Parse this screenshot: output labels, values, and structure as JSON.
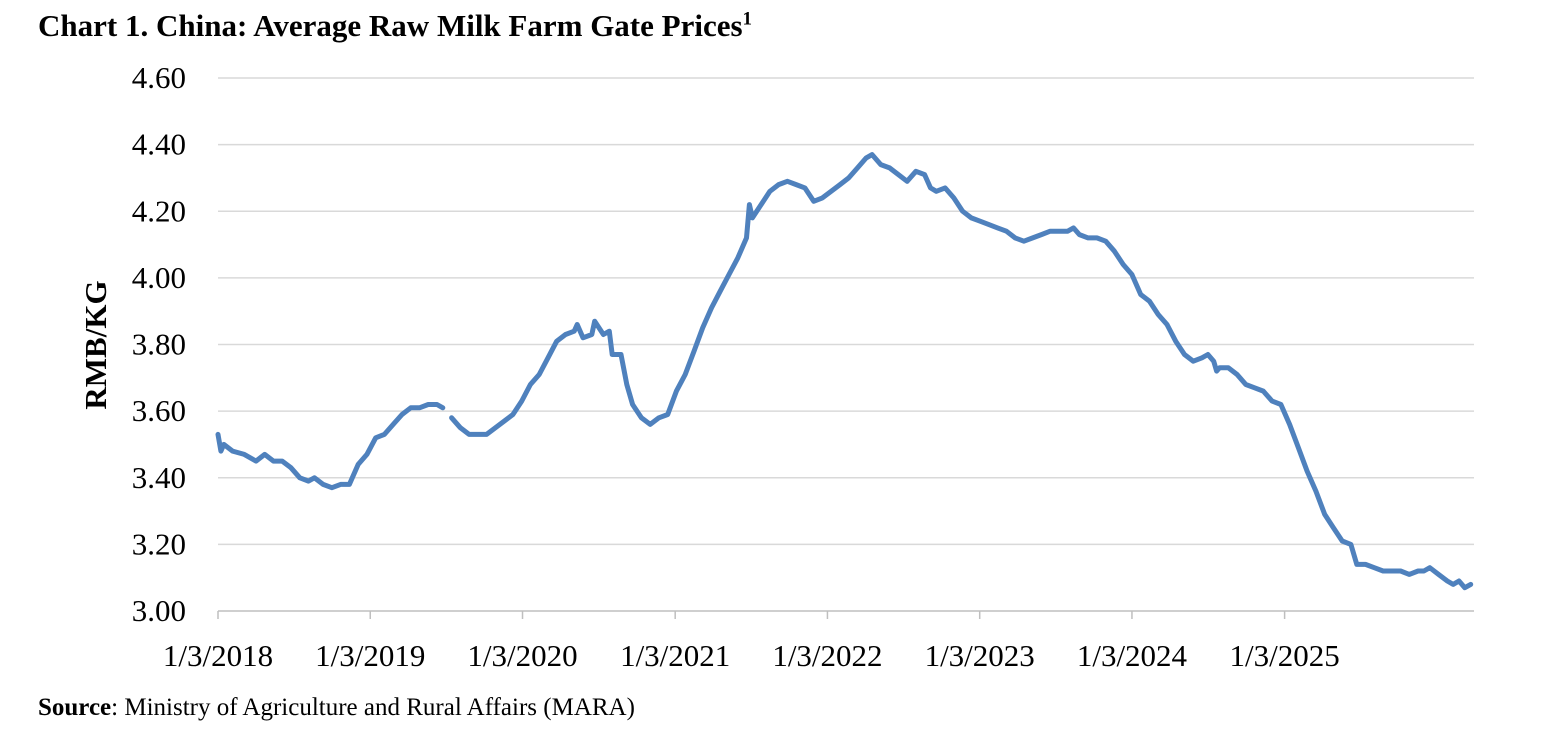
{
  "chart_data": {
    "type": "line",
    "title": "Chart 1. China:  Average Raw Milk Farm Gate Prices",
    "title_footnote": "1",
    "ylabel": "RMB/KG",
    "xlabel": "",
    "ylim": [
      3.0,
      4.6
    ],
    "y_ticks": [
      "3.00",
      "3.20",
      "3.40",
      "3.60",
      "3.80",
      "4.00",
      "4.20",
      "4.40",
      "4.60"
    ],
    "x_ticks": [
      "1/3/2018",
      "1/3/2019",
      "1/3/2020",
      "1/3/2021",
      "1/3/2022",
      "1/3/2023",
      "1/3/2024",
      "1/3/2025"
    ],
    "grid": "horizontal",
    "legend": "none",
    "color": "#4F81BD",
    "x_unit": "date",
    "series": [
      {
        "points": [
          [
            "2018-01-03",
            3.53
          ],
          [
            "2018-01-10",
            3.48
          ],
          [
            "2018-01-17",
            3.5
          ],
          [
            "2018-02-07",
            3.48
          ],
          [
            "2018-03-07",
            3.47
          ],
          [
            "2018-04-04",
            3.45
          ],
          [
            "2018-04-25",
            3.47
          ],
          [
            "2018-05-16",
            3.45
          ],
          [
            "2018-06-06",
            3.45
          ],
          [
            "2018-06-27",
            3.43
          ],
          [
            "2018-07-18",
            3.4
          ],
          [
            "2018-08-08",
            3.39
          ],
          [
            "2018-08-22",
            3.4
          ],
          [
            "2018-09-12",
            3.38
          ],
          [
            "2018-10-03",
            3.37
          ],
          [
            "2018-10-24",
            3.38
          ],
          [
            "2018-11-14",
            3.38
          ],
          [
            "2018-12-05",
            3.44
          ],
          [
            "2018-12-26",
            3.47
          ],
          [
            "2019-01-16",
            3.52
          ],
          [
            "2019-02-06",
            3.53
          ],
          [
            "2019-02-27",
            3.56
          ],
          [
            "2019-03-20",
            3.59
          ],
          [
            "2019-04-10",
            3.61
          ],
          [
            "2019-05-01",
            3.61
          ],
          [
            "2019-05-22",
            3.62
          ],
          [
            "2019-06-12",
            3.62
          ],
          [
            "2019-06-26",
            3.61
          ],
          null,
          [
            "2019-07-17",
            3.58
          ],
          [
            "2019-08-07",
            3.55
          ],
          [
            "2019-08-28",
            3.53
          ],
          [
            "2019-09-18",
            3.53
          ],
          [
            "2019-10-09",
            3.53
          ],
          [
            "2019-10-30",
            3.55
          ],
          [
            "2019-11-20",
            3.57
          ],
          [
            "2019-12-11",
            3.59
          ],
          [
            "2020-01-01",
            3.63
          ],
          [
            "2020-01-22",
            3.68
          ],
          [
            "2020-02-12",
            3.71
          ],
          [
            "2020-03-04",
            3.76
          ],
          [
            "2020-03-25",
            3.81
          ],
          [
            "2020-04-15",
            3.83
          ],
          [
            "2020-05-06",
            3.84
          ],
          [
            "2020-05-13",
            3.86
          ],
          [
            "2020-05-27",
            3.82
          ],
          [
            "2020-06-17",
            3.83
          ],
          [
            "2020-06-24",
            3.87
          ],
          [
            "2020-07-15",
            3.83
          ],
          [
            "2020-07-29",
            3.84
          ],
          [
            "2020-08-05",
            3.77
          ],
          [
            "2020-08-26",
            3.77
          ],
          [
            "2020-09-09",
            3.68
          ],
          [
            "2020-09-23",
            3.62
          ],
          [
            "2020-10-14",
            3.58
          ],
          [
            "2020-11-04",
            3.56
          ],
          [
            "2020-11-25",
            3.58
          ],
          [
            "2020-12-16",
            3.59
          ],
          [
            "2021-01-06",
            3.66
          ],
          [
            "2021-01-27",
            3.71
          ],
          [
            "2021-02-17",
            3.78
          ],
          [
            "2021-03-10",
            3.85
          ],
          [
            "2021-03-31",
            3.91
          ],
          [
            "2021-04-21",
            3.96
          ],
          [
            "2021-05-12",
            4.01
          ],
          [
            "2021-06-02",
            4.06
          ],
          [
            "2021-06-23",
            4.12
          ],
          [
            "2021-06-30",
            4.22
          ],
          [
            "2021-07-07",
            4.18
          ],
          [
            "2021-07-28",
            4.22
          ],
          [
            "2021-08-18",
            4.26
          ],
          [
            "2021-09-08",
            4.28
          ],
          [
            "2021-09-29",
            4.29
          ],
          [
            "2021-10-20",
            4.28
          ],
          [
            "2021-11-10",
            4.27
          ],
          [
            "2021-12-01",
            4.23
          ],
          [
            "2021-12-22",
            4.24
          ],
          [
            "2022-01-12",
            4.26
          ],
          [
            "2022-02-02",
            4.28
          ],
          [
            "2022-02-23",
            4.3
          ],
          [
            "2022-03-16",
            4.33
          ],
          [
            "2022-04-06",
            4.36
          ],
          [
            "2022-04-20",
            4.37
          ],
          [
            "2022-05-11",
            4.34
          ],
          [
            "2022-06-01",
            4.33
          ],
          [
            "2022-06-22",
            4.31
          ],
          [
            "2022-07-13",
            4.29
          ],
          [
            "2022-08-03",
            4.32
          ],
          [
            "2022-08-24",
            4.31
          ],
          [
            "2022-09-07",
            4.27
          ],
          [
            "2022-09-21",
            4.26
          ],
          [
            "2022-10-12",
            4.27
          ],
          [
            "2022-11-02",
            4.24
          ],
          [
            "2022-11-23",
            4.2
          ],
          [
            "2022-12-14",
            4.18
          ],
          [
            "2023-01-04",
            4.17
          ],
          [
            "2023-01-25",
            4.16
          ],
          [
            "2023-02-15",
            4.15
          ],
          [
            "2023-03-08",
            4.14
          ],
          [
            "2023-03-29",
            4.12
          ],
          [
            "2023-04-19",
            4.11
          ],
          [
            "2023-05-10",
            4.12
          ],
          [
            "2023-05-31",
            4.13
          ],
          [
            "2023-06-21",
            4.14
          ],
          [
            "2023-07-12",
            4.14
          ],
          [
            "2023-08-02",
            4.14
          ],
          [
            "2023-08-16",
            4.15
          ],
          [
            "2023-08-30",
            4.13
          ],
          [
            "2023-09-20",
            4.12
          ],
          [
            "2023-10-11",
            4.12
          ],
          [
            "2023-11-01",
            4.11
          ],
          [
            "2023-11-22",
            4.08
          ],
          [
            "2023-12-13",
            4.04
          ],
          [
            "2024-01-03",
            4.01
          ],
          [
            "2024-01-24",
            3.95
          ],
          [
            "2024-02-14",
            3.93
          ],
          [
            "2024-03-06",
            3.89
          ],
          [
            "2024-03-27",
            3.86
          ],
          [
            "2024-04-17",
            3.81
          ],
          [
            "2024-05-08",
            3.77
          ],
          [
            "2024-05-29",
            3.75
          ],
          [
            "2024-06-19",
            3.76
          ],
          [
            "2024-07-03",
            3.77
          ],
          [
            "2024-07-17",
            3.75
          ],
          [
            "2024-07-24",
            3.72
          ],
          [
            "2024-07-31",
            3.73
          ],
          [
            "2024-08-21",
            3.73
          ],
          [
            "2024-09-11",
            3.71
          ],
          [
            "2024-10-02",
            3.68
          ],
          [
            "2024-10-23",
            3.67
          ],
          [
            "2024-11-13",
            3.66
          ],
          [
            "2024-12-04",
            3.63
          ],
          [
            "2024-12-25",
            3.62
          ],
          [
            "2025-01-15",
            3.56
          ],
          [
            "2025-02-05",
            3.49
          ],
          [
            "2025-02-26",
            3.42
          ],
          [
            "2025-03-19",
            3.36
          ],
          [
            "2025-04-09",
            3.29
          ],
          [
            "2025-04-30",
            3.25
          ],
          [
            "2025-05-21",
            3.21
          ],
          [
            "2025-06-11",
            3.2
          ],
          [
            "2025-06-25",
            3.14
          ],
          [
            "2025-07-16",
            3.14
          ],
          [
            "2025-08-06",
            3.13
          ],
          [
            "2025-08-27",
            3.12
          ],
          [
            "2025-09-17",
            3.12
          ],
          [
            "2025-10-08",
            3.12
          ],
          [
            "2025-10-29",
            3.11
          ],
          [
            "2025-11-19",
            3.12
          ],
          [
            "2025-12-03",
            3.12
          ],
          [
            "2025-12-17",
            3.13
          ],
          [
            "2026-01-07",
            3.11
          ],
          [
            "2026-01-28",
            3.09
          ],
          [
            "2026-02-11",
            3.08
          ],
          [
            "2026-02-25",
            3.09
          ],
          [
            "2026-03-11",
            3.07
          ],
          [
            "2026-03-25",
            3.08
          ]
        ]
      }
    ],
    "source_label": "Source",
    "source_text": ": Ministry of Agriculture and Rural Affairs (MARA)"
  }
}
